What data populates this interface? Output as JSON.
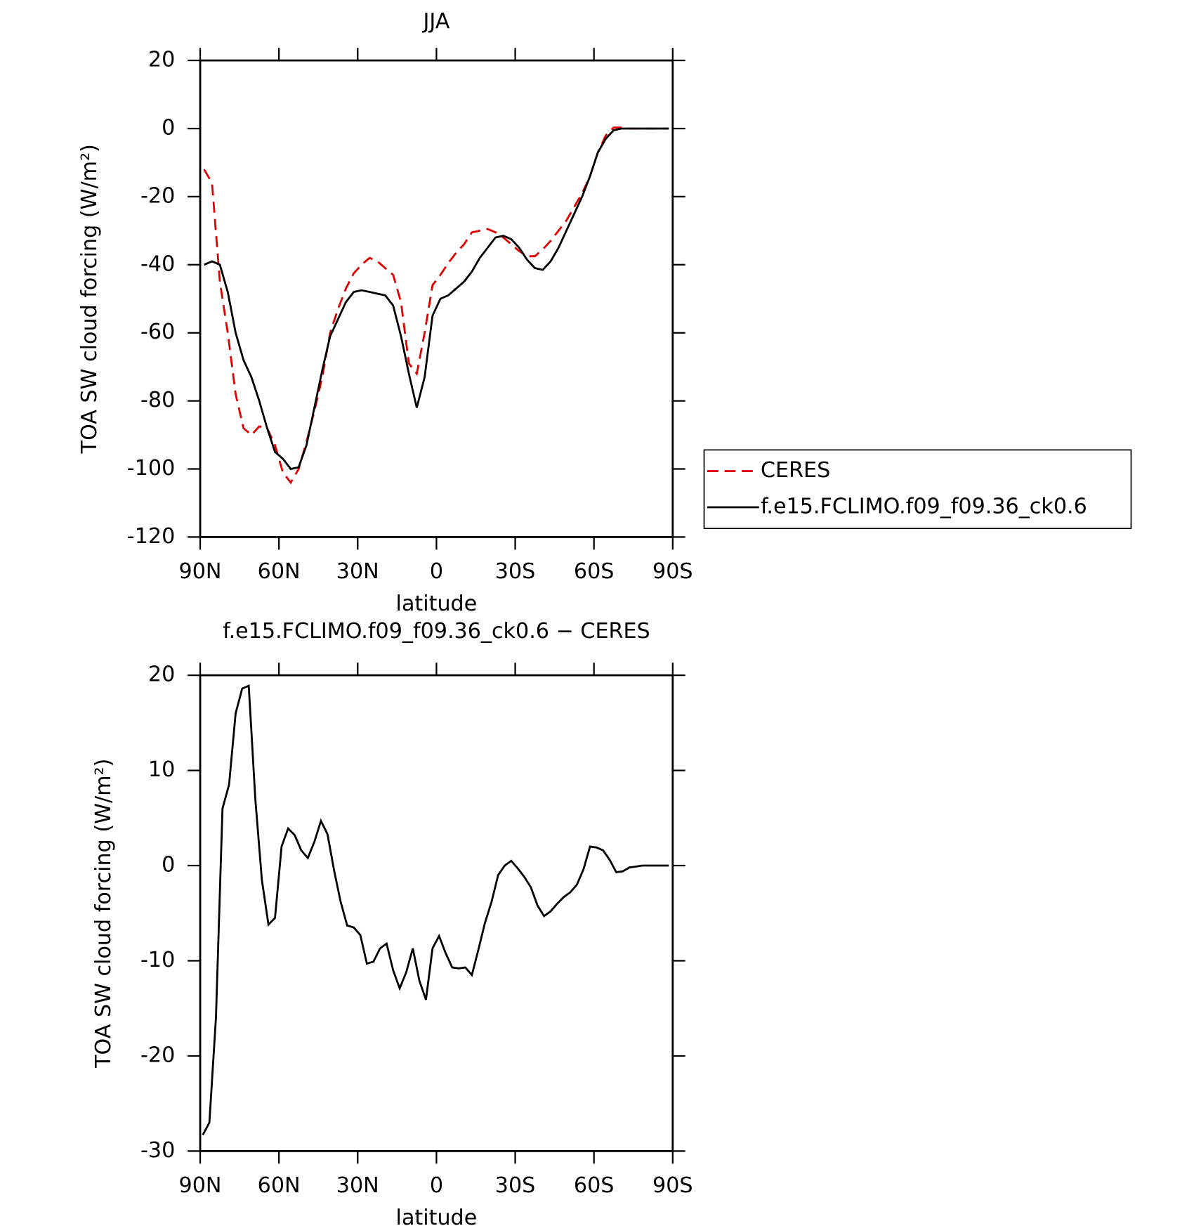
{
  "chart_data": [
    {
      "type": "line",
      "title": "JJA",
      "xlabel": "latitude",
      "ylabel": "TOA SW cloud forcing (W/m²)",
      "x": [
        88.5,
        85.5,
        82.5,
        79.5,
        76.5,
        73.5,
        70.5,
        67.5,
        64.5,
        61.5,
        58.5,
        55.5,
        52.5,
        49.5,
        46.5,
        43.5,
        40.5,
        37.5,
        34.5,
        31.5,
        28.5,
        25.5,
        22.5,
        19.5,
        16.5,
        13.5,
        10.5,
        7.5,
        4.5,
        1.5,
        -1.5,
        -4.5,
        -7.5,
        -10.5,
        -13.5,
        -16.5,
        -19.5,
        -22.5,
        -25.5,
        -28.5,
        -31.5,
        -34.5,
        -37.5,
        -40.5,
        -43.5,
        -46.5,
        -49.5,
        -52.5,
        -55.5,
        -58.5,
        -61.5,
        -64.5,
        -67.5,
        -70.5,
        -73.5,
        -76.5,
        -79.5,
        -82.5,
        -85.5,
        -88.5
      ],
      "series": [
        {
          "name": "CERES",
          "color": "#e00000",
          "line_style": "dashed",
          "values": [
            -12,
            -16,
            -45,
            -60,
            -78,
            -88,
            -90,
            -87.5,
            -88,
            -93,
            -101,
            -104,
            -100,
            -92,
            -83,
            -73,
            -60,
            -53,
            -47,
            -42.5,
            -40,
            -38,
            -39,
            -41,
            -43,
            -51,
            -69,
            -72,
            -60,
            -46,
            -43,
            -39.5,
            -36.5,
            -34,
            -30.5,
            -30,
            -29.5,
            -30.5,
            -32,
            -34,
            -36,
            -37.5,
            -37.5,
            -35.5,
            -33,
            -30,
            -27,
            -23,
            -19,
            -14,
            -7,
            -2,
            0.3,
            0.3,
            0,
            0,
            0,
            0,
            0,
            0
          ]
        },
        {
          "name": "f.e15.FCLIMO.f09_f09.36_ck0.6",
          "color": "#000000",
          "line_style": "solid",
          "values": [
            -40,
            -39,
            -40,
            -48,
            -60,
            -68,
            -73,
            -80,
            -88,
            -95,
            -97,
            -100,
            -99.5,
            -93,
            -82,
            -71,
            -61,
            -56,
            -51,
            -48,
            -47.5,
            -48,
            -48.5,
            -49,
            -52,
            -61,
            -72,
            -82,
            -73,
            -55,
            -50,
            -49,
            -47,
            -45,
            -42,
            -38,
            -35,
            -32,
            -31.5,
            -32.5,
            -35,
            -38.5,
            -41,
            -41.5,
            -39,
            -35,
            -30,
            -25,
            -20,
            -14,
            -7,
            -3,
            -0.5,
            0,
            0,
            0,
            0,
            0,
            0,
            0
          ]
        }
      ],
      "xlim": [
        90,
        -90
      ],
      "xticks": [
        {
          "value": 90,
          "label": "90N"
        },
        {
          "value": 60,
          "label": "60N"
        },
        {
          "value": 30,
          "label": "30N"
        },
        0,
        {
          "value": -30,
          "label": "30S"
        },
        {
          "value": -60,
          "label": "60S"
        },
        {
          "value": -90,
          "label": "90S"
        }
      ],
      "ylim": [
        -120,
        20
      ],
      "yticks": [
        -120,
        -100,
        -80,
        -60,
        -40,
        -20,
        0,
        20
      ],
      "legend": "right"
    },
    {
      "type": "line",
      "title": "f.e15.FCLIMO.f09_f09.36_ck0.6 − CERES",
      "xlabel": "latitude",
      "ylabel": "TOA SW cloud forcing (W/m²)",
      "x": [
        89,
        86.5,
        84,
        81.5,
        79,
        76.5,
        74,
        71.5,
        69,
        66.5,
        64,
        61.5,
        59,
        56.5,
        54,
        51.5,
        49,
        46.5,
        44,
        41.5,
        39,
        36.5,
        34,
        31.5,
        29,
        26.5,
        24,
        21.5,
        19,
        16.5,
        14,
        11.5,
        9,
        6.5,
        4,
        1.5,
        -1,
        -3.5,
        -6,
        -8.5,
        -11,
        -13.5,
        -16,
        -18.5,
        -21,
        -23.5,
        -26,
        -28.5,
        -31,
        -33.5,
        -36,
        -38.5,
        -41,
        -43.5,
        -46,
        -48.5,
        -51,
        -53.5,
        -56,
        -58.5,
        -61,
        -63.5,
        -66,
        -68.5,
        -71,
        -73.5,
        -76,
        -78.5,
        -81,
        -83.5,
        -86,
        -88.5
      ],
      "values": [
        -28.3,
        -27,
        -16,
        6,
        8.5,
        16,
        18.6,
        18.9,
        7,
        -1.5,
        -6.2,
        -5.5,
        2,
        3.9,
        3.2,
        1.6,
        0.8,
        2.5,
        4.7,
        3.3,
        -0.5,
        -3.8,
        -6.3,
        -6.5,
        -7.3,
        -10.3,
        -10.1,
        -8.7,
        -8.2,
        -11,
        -12.9,
        -11.2,
        -8.7,
        -12.1,
        -14.1,
        -8.7,
        -7.4,
        -9.2,
        -10.7,
        -10.8,
        -10.7,
        -11.5,
        -8.8,
        -6,
        -3.8,
        -1,
        0,
        0.5,
        -0.3,
        -1.2,
        -2.3,
        -4.2,
        -5.3,
        -4.8,
        -4,
        -3.3,
        -2.8,
        -2,
        -0.4,
        2,
        1.9,
        1.6,
        0.6,
        -0.7,
        -0.6,
        -0.2,
        -0.1,
        0,
        0,
        0,
        0,
        0
      ],
      "color": "#000000",
      "xlim": [
        90,
        -90
      ],
      "xticks": [
        {
          "value": 90,
          "label": "90N"
        },
        {
          "value": 60,
          "label": "60N"
        },
        {
          "value": 30,
          "label": "30N"
        },
        0,
        {
          "value": -30,
          "label": "30S"
        },
        {
          "value": -60,
          "label": "60S"
        },
        {
          "value": -90,
          "label": "90S"
        }
      ],
      "ylim": [
        -30,
        20
      ],
      "yticks": [
        -30,
        -20,
        -10,
        0,
        10,
        20
      ]
    }
  ]
}
